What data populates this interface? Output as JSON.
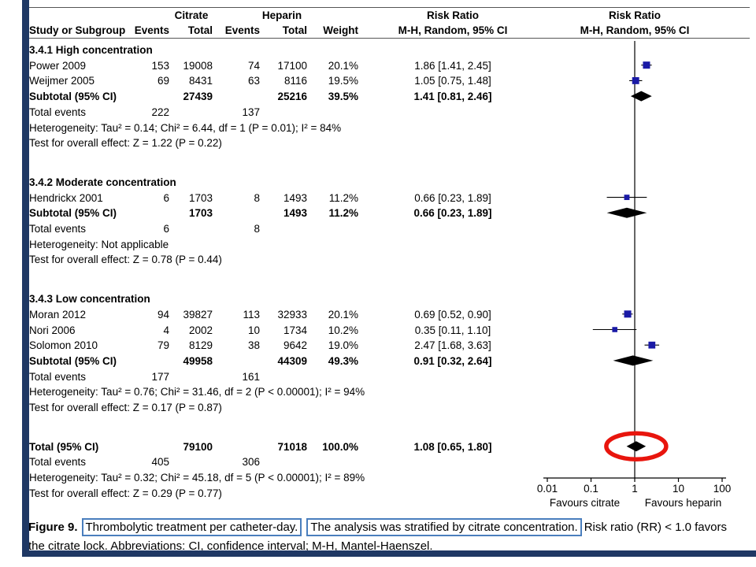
{
  "table_header": {
    "citrate": "Citrate",
    "heparin": "Heparin",
    "risk_ratio_text": "Risk Ratio",
    "risk_ratio_plot": "Risk Ratio",
    "study": "Study or Subgroup",
    "events": "Events",
    "total": "Total",
    "weight": "Weight",
    "mh_ci": "M-H, Random, 95% CI"
  },
  "chart_data": {
    "type": "forest",
    "effect_measure": "Risk Ratio, M-H, Random, 95% CI",
    "x_axis": {
      "scale": "log",
      "min": 0.01,
      "max": 100,
      "ticks": [
        "0.01",
        "0.1",
        "1",
        "10",
        "100"
      ],
      "label_left": "Favours citrate",
      "label_right": "Favours heparin"
    },
    "groups": [
      {
        "title": "3.4.1 High concentration",
        "studies": [
          {
            "name": "Power 2009",
            "citrate_events": "153",
            "citrate_total": "19008",
            "heparin_events": "74",
            "heparin_total": "17100",
            "weight": "20.1%",
            "rr_ci": "1.86 [1.41, 2.45]",
            "rr": 1.86,
            "lo": 1.41,
            "hi": 2.45
          },
          {
            "name": "Weijmer 2005",
            "citrate_events": "69",
            "citrate_total": "8431",
            "heparin_events": "63",
            "heparin_total": "8116",
            "weight": "19.5%",
            "rr_ci": "1.05 [0.75, 1.48]",
            "rr": 1.05,
            "lo": 0.75,
            "hi": 1.48
          }
        ],
        "subtotal": {
          "label": "Subtotal (95% CI)",
          "citrate_total": "27439",
          "heparin_total": "25216",
          "weight": "39.5%",
          "rr_ci": "1.41 [0.81, 2.46]",
          "rr": 1.41,
          "lo": 0.81,
          "hi": 2.46
        },
        "total_events": {
          "label": "Total events",
          "citrate": "222",
          "heparin": "137"
        },
        "heterogeneity": "Heterogeneity: Tau² = 0.14; Chi² = 6.44, df = 1 (P = 0.01); I² = 84%",
        "test": "Test for overall effect: Z = 1.22 (P = 0.22)"
      },
      {
        "title": "3.4.2 Moderate concentration",
        "studies": [
          {
            "name": "Hendrickx 2001",
            "citrate_events": "6",
            "citrate_total": "1703",
            "heparin_events": "8",
            "heparin_total": "1493",
            "weight": "11.2%",
            "rr_ci": "0.66 [0.23, 1.89]",
            "rr": 0.66,
            "lo": 0.23,
            "hi": 1.89
          }
        ],
        "subtotal": {
          "label": "Subtotal (95% CI)",
          "citrate_total": "1703",
          "heparin_total": "1493",
          "weight": "11.2%",
          "rr_ci": "0.66 [0.23, 1.89]",
          "rr": 0.66,
          "lo": 0.23,
          "hi": 1.89
        },
        "total_events": {
          "label": "Total events",
          "citrate": "6",
          "heparin": "8"
        },
        "heterogeneity": "Heterogeneity: Not applicable",
        "test": "Test for overall effect: Z = 0.78 (P = 0.44)"
      },
      {
        "title": "3.4.3 Low concentration",
        "studies": [
          {
            "name": "Moran 2012",
            "citrate_events": "94",
            "citrate_total": "39827",
            "heparin_events": "113",
            "heparin_total": "32933",
            "weight": "20.1%",
            "rr_ci": "0.69 [0.52, 0.90]",
            "rr": 0.69,
            "lo": 0.52,
            "hi": 0.9
          },
          {
            "name": "Nori 2006",
            "citrate_events": "4",
            "citrate_total": "2002",
            "heparin_events": "10",
            "heparin_total": "1734",
            "weight": "10.2%",
            "rr_ci": "0.35 [0.11, 1.10]",
            "rr": 0.35,
            "lo": 0.11,
            "hi": 1.1
          },
          {
            "name": "Solomon 2010",
            "citrate_events": "79",
            "citrate_total": "8129",
            "heparin_events": "38",
            "heparin_total": "9642",
            "weight": "19.0%",
            "rr_ci": "2.47 [1.68, 3.63]",
            "rr": 2.47,
            "lo": 1.68,
            "hi": 3.63
          }
        ],
        "subtotal": {
          "label": "Subtotal (95% CI)",
          "citrate_total": "49958",
          "heparin_total": "44309",
          "weight": "49.3%",
          "rr_ci": "0.91 [0.32, 2.64]",
          "rr": 0.91,
          "lo": 0.32,
          "hi": 2.64
        },
        "total_events": {
          "label": "Total events",
          "citrate": "177",
          "heparin": "161"
        },
        "heterogeneity": "Heterogeneity: Tau² = 0.76; Chi² = 31.46, df = 2 (P < 0.00001); I² = 94%",
        "test": "Test for overall effect: Z = 0.17 (P = 0.87)"
      }
    ],
    "total": {
      "label": "Total (95% CI)",
      "citrate_total": "79100",
      "heparin_total": "71018",
      "weight": "100.0%",
      "rr_ci": "1.08 [0.65, 1.80]",
      "rr": 1.08,
      "lo": 0.65,
      "hi": 1.8,
      "total_events": {
        "label": "Total events",
        "citrate": "405",
        "heparin": "306"
      },
      "heterogeneity": "Heterogeneity: Tau² = 0.32; Chi² = 45.18, df = 5 (P < 0.00001); I² = 89%",
      "test": "Test for overall effect: Z = 0.29 (P = 0.77)"
    },
    "annotations": [
      {
        "type": "ellipse-highlight",
        "on": "total-diamond",
        "color": "#e8150d"
      }
    ]
  },
  "caption": {
    "figure_label": "Figure 9.",
    "highlight1": "Thrombolytic treatment per catheter-day.",
    "highlight2": "The analysis was stratified by citrate concentration.",
    "tail": "Risk ratio (RR) < 1.0 favors",
    "line2": "the citrate lock. Abbreviations: CI, confidence interval; M-H, Mantel-Haenszel."
  },
  "colors": {
    "accent_navy": "#1f3864",
    "marker_blue": "#1a1aa6",
    "diamond_black": "#000000",
    "ellipse_red": "#e8150d",
    "caption_box_blue": "#4a7ebd"
  }
}
